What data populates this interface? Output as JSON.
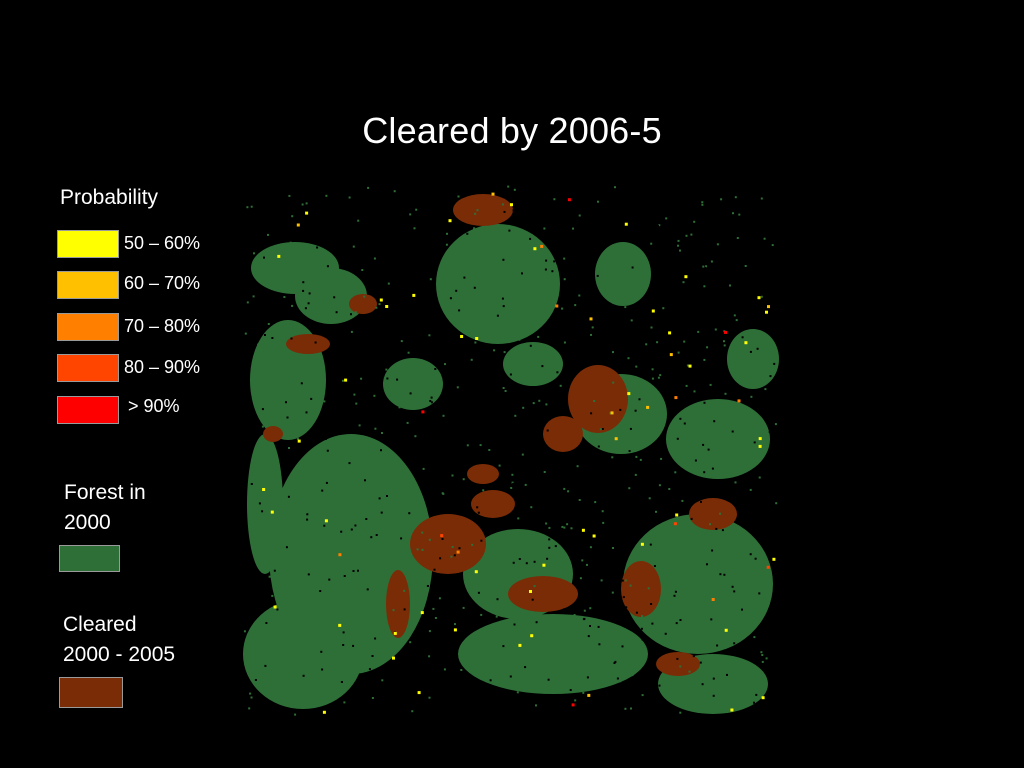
{
  "title": "Cleared by 2006-5",
  "legend": {
    "probability_heading": "Probability",
    "probability_items": [
      {
        "label": "50 – 60%",
        "color": "#ffff00"
      },
      {
        "label": "60 – 70%",
        "color": "#ffc000"
      },
      {
        "label": "70 – 80%",
        "color": "#ff8000"
      },
      {
        "label": "80 – 90%",
        "color": "#ff4500"
      },
      {
        "label": "> 90%",
        "color": "#ff0000"
      }
    ],
    "forest_heading_line1": "Forest in",
    "forest_heading_line2": "2000",
    "forest_color": "#2e6f38",
    "cleared_heading_line1": "Cleared",
    "cleared_heading_line2": "2000 - 2005",
    "cleared_color": "#7a2c06"
  },
  "map": {
    "background_color": "#000000",
    "forest_color": "#2e6f38",
    "cleared_color": "#7a2c06"
  }
}
